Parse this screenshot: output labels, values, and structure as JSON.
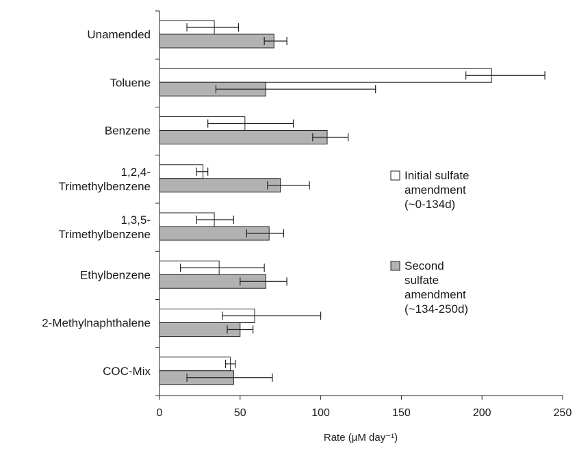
{
  "chart_data": {
    "type": "bar",
    "orientation": "horizontal",
    "categories": [
      {
        "line1": "Unamended",
        "line2": ""
      },
      {
        "line1": "Toluene",
        "line2": ""
      },
      {
        "line1": "Benzene",
        "line2": ""
      },
      {
        "line1": "1,2,4-",
        "line2": "Trimethylbenzene"
      },
      {
        "line1": "1,3,5-",
        "line2": "Trimethylbenzene"
      },
      {
        "line1": "Ethylbenzene",
        "line2": ""
      },
      {
        "line1": "2-Methylnaphthalene",
        "line2": ""
      },
      {
        "line1": "COC-Mix",
        "line2": ""
      }
    ],
    "series": [
      {
        "name_lines": [
          "Initial sulfate",
          "amendment",
          "(~0-134d)"
        ],
        "color": "#ffffff",
        "values": [
          34,
          206,
          53,
          27,
          34,
          37,
          59,
          44
        ],
        "error_low": [
          17,
          190,
          30,
          23,
          23,
          13,
          39,
          41
        ],
        "error_high": [
          49,
          239,
          83,
          30,
          46,
          65,
          100,
          47
        ]
      },
      {
        "name_lines": [
          "Second",
          "sulfate",
          "amendment",
          "(~134-250d)"
        ],
        "color": "#b2b2b2",
        "values": [
          71,
          66,
          104,
          75,
          68,
          66,
          50,
          46
        ],
        "error_low": [
          65,
          35,
          95,
          67,
          54,
          50,
          42,
          17
        ],
        "error_high": [
          79,
          134,
          117,
          93,
          77,
          79,
          58,
          70
        ]
      }
    ],
    "x_ticks": [
      "0",
      "50",
      "100",
      "150",
      "200",
      "250"
    ],
    "xlim": [
      0,
      250
    ],
    "xlabel": "Rate (µM day⁻¹)",
    "ylabel": "",
    "title": "",
    "grid": false,
    "legend_position": "right"
  }
}
